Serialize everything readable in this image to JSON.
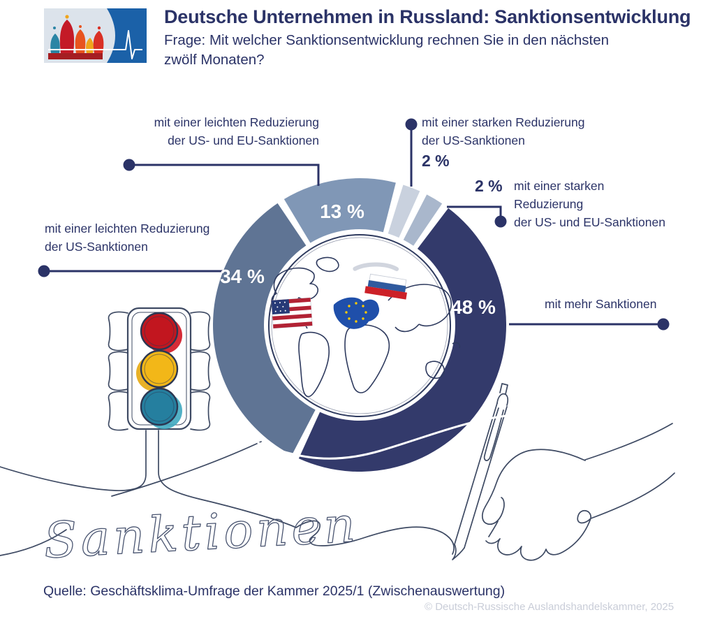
{
  "header": {
    "title": "Deutsche Unternehmen in Russland: Sanktionsentwicklung",
    "question": "Frage: Mit welcher Sanktionsentwicklung rechnen Sie in den nächsten zwölf Monaten?"
  },
  "chart_data": {
    "type": "pie",
    "variant": "donut",
    "unit": "%",
    "title": "Sanktionsentwicklung – Erwartung der nächsten zwölf Monate",
    "slices": [
      {
        "id": "light-reduction-us-eu",
        "label": "mit einer leichten Reduzierung der US- und EU-Sanktionen",
        "value": 13,
        "pct_label": "13 %",
        "color": "#8097b6"
      },
      {
        "id": "strong-reduction-us",
        "label": "mit einer starken Reduzierung der US-Sanktionen",
        "value": 2,
        "pct_label": "2 %",
        "color": "#c9d1de"
      },
      {
        "id": "strong-reduction-us-eu",
        "label": "mit einer starken Reduzierung der US- und EU-Sanktionen",
        "value": 2,
        "pct_label": "2 %",
        "color": "#a9b7cc"
      },
      {
        "id": "more-sanctions",
        "label": "mit mehr Sanktionen",
        "value": 48,
        "pct_label": "48 %",
        "color": "#333a6b"
      },
      {
        "id": "light-reduction-us",
        "label": "mit einer leichten Reduzierung der US-Sanktionen",
        "value": 34,
        "pct_label": "34 %",
        "color": "#5f7494"
      }
    ],
    "layout": {
      "center": [
        515,
        465
      ],
      "outer_radius": 210,
      "inner_radius": 137,
      "start_angle_deg": -31,
      "gap_deg": 3,
      "legend": "callouts"
    }
  },
  "callouts": {
    "light_us_eu": {
      "line1": "mit einer leichten Reduzierung",
      "line2": "der US- und EU-Sanktionen"
    },
    "strong_us": {
      "line1": "mit einer starken Reduzierung",
      "line2": "der US-Sanktionen"
    },
    "strong_us_eu": {
      "line1": "mit einer starken",
      "line2": "Reduzierung",
      "line3": "der US- und EU-Sanktionen"
    },
    "light_us": {
      "line1": "mit einer leichten Reduzierung",
      "line2": "der US-Sanktionen"
    },
    "more": {
      "label": "mit mehr Sanktionen"
    }
  },
  "decor": {
    "script_word": "Sanktionen"
  },
  "footer": {
    "source": "Quelle: Geschäftsklima-Umfrage der Kammer 2025/1 (Zwischenauswertung)",
    "copyright": "© Deutsch-Russische Auslandshandelskammer, 2025"
  },
  "colors": {
    "navy_text": "#2b3367",
    "line_art": "#3e4a63",
    "traffic_red": "#c2161f",
    "traffic_yellow": "#f2b718",
    "traffic_teal": "#257f9f",
    "logo_blue": "#1b61a8"
  }
}
